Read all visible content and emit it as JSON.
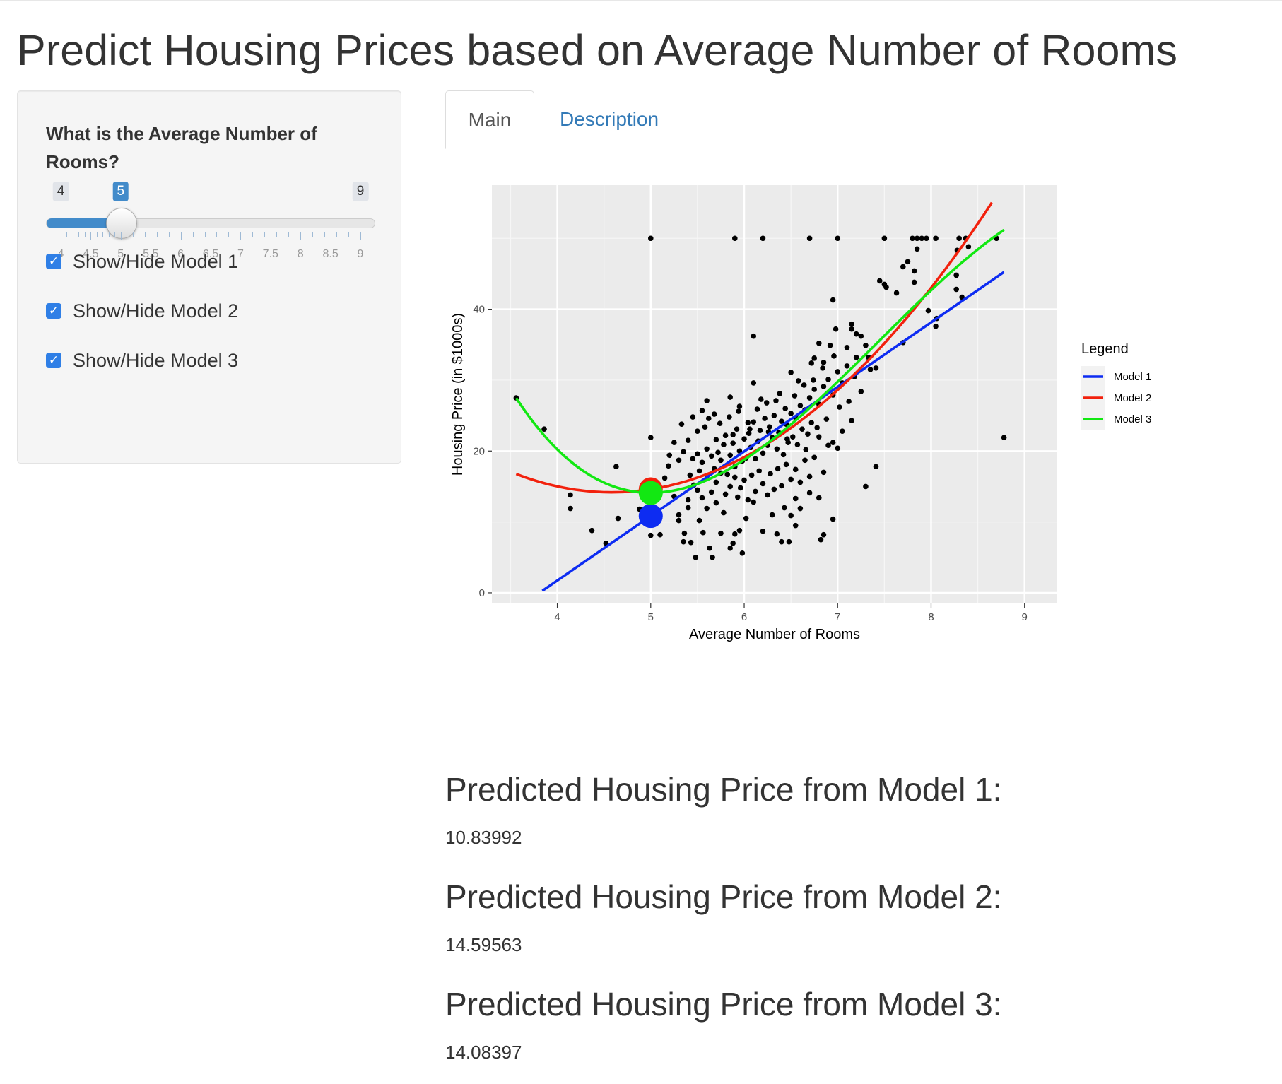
{
  "page": {
    "title": "Predict Housing Prices based on Average Number of Rooms"
  },
  "sidebar": {
    "input_label": "What is the Average Number of Rooms?",
    "slider": {
      "min": 4,
      "max": 9,
      "value": 5,
      "min_label": "4",
      "max_label": "9",
      "value_label": "5",
      "tick_labels": [
        "4",
        "4.5",
        "5",
        "5.5",
        "6",
        "6.5",
        "7",
        "7.5",
        "8",
        "8.5",
        "9"
      ],
      "accent_color": "#428bca"
    },
    "checkboxes": [
      {
        "label": "Show/Hide Model 1",
        "checked": true
      },
      {
        "label": "Show/Hide Model 2",
        "checked": true
      },
      {
        "label": "Show/Hide Model 3",
        "checked": true
      }
    ]
  },
  "tabs": [
    {
      "label": "Main",
      "active": true
    },
    {
      "label": "Description",
      "active": false
    }
  ],
  "chart_data": {
    "type": "scatter",
    "xlabel": "Average Number of Rooms",
    "ylabel": "Housing Price (in $1000s)",
    "xlim": [
      3.3,
      9.35
    ],
    "ylim": [
      -1.5,
      57.5
    ],
    "x_ticks": [
      4,
      5,
      6,
      7,
      8,
      9
    ],
    "y_ticks": [
      0,
      20,
      40
    ],
    "grid": true,
    "legend": {
      "title": "Legend",
      "position": "right",
      "entries": [
        {
          "label": "Model 1",
          "color": "#0d2cf2"
        },
        {
          "label": "Model 2",
          "color": "#f2210d"
        },
        {
          "label": "Model 3",
          "color": "#12e812"
        }
      ]
    },
    "series": [
      {
        "name": "Model 1",
        "kind": "linear",
        "x_range": [
          3.84,
          8.78
        ],
        "coef": [
          -34.67,
          9.102
        ],
        "color": "#0d2cf2"
      },
      {
        "name": "Model 2",
        "kind": "quadratic",
        "x_range": [
          3.56,
          8.65
        ],
        "coef": [
          66.06,
          -22.64,
          2.47
        ],
        "color": "#f2210d"
      },
      {
        "name": "Model 3",
        "kind": "cubic",
        "x_range": [
          3.56,
          8.78
        ],
        "coef": [
          241.31,
          -109.39,
          16.49,
          -0.74
        ],
        "color": "#12e812"
      }
    ],
    "predictions": [
      {
        "x": 5,
        "y": 10.83992,
        "color": "#0d2cf2"
      },
      {
        "x": 5,
        "y": 14.59563,
        "color": "#f2210d"
      },
      {
        "x": 5,
        "y": 14.08397,
        "color": "#12e812"
      }
    ],
    "points": [
      [
        5.0,
        50.0
      ],
      [
        5.9,
        50.0
      ],
      [
        6.2,
        50.0
      ],
      [
        6.7,
        50.0
      ],
      [
        7.0,
        50.0
      ],
      [
        7.5,
        50.0
      ],
      [
        7.8,
        50.0
      ],
      [
        7.85,
        50.0
      ],
      [
        7.9,
        50.0
      ],
      [
        7.95,
        50.0
      ],
      [
        8.05,
        50.0
      ],
      [
        8.3,
        50.0
      ],
      [
        8.37,
        50.0
      ],
      [
        8.7,
        50.0
      ],
      [
        7.85,
        48.5
      ],
      [
        8.28,
        48.3
      ],
      [
        8.4,
        48.8
      ],
      [
        7.7,
        46.0
      ],
      [
        7.75,
        46.7
      ],
      [
        7.82,
        45.4
      ],
      [
        7.82,
        43.8
      ],
      [
        7.45,
        44.0
      ],
      [
        7.5,
        43.5
      ],
      [
        7.52,
        43.1
      ],
      [
        7.63,
        42.3
      ],
      [
        8.27,
        44.8
      ],
      [
        8.27,
        42.8
      ],
      [
        8.33,
        41.7
      ],
      [
        6.95,
        41.3
      ],
      [
        7.97,
        39.8
      ],
      [
        8.05,
        37.6
      ],
      [
        8.06,
        38.7
      ],
      [
        7.7,
        35.3
      ],
      [
        7.15,
        37.9
      ],
      [
        7.15,
        37.2
      ],
      [
        6.98,
        37.2
      ],
      [
        7.2,
        36.5
      ],
      [
        7.25,
        36.2
      ],
      [
        7.3,
        34.9
      ],
      [
        7.1,
        34.6
      ],
      [
        6.92,
        34.9
      ],
      [
        6.96,
        33.4
      ],
      [
        7.2,
        33.2
      ],
      [
        6.85,
        32.5
      ],
      [
        6.75,
        33.1
      ],
      [
        7.33,
        33.2
      ],
      [
        7.41,
        31.7
      ],
      [
        7.35,
        31.5
      ],
      [
        6.1,
        36.2
      ],
      [
        6.8,
        35.2
      ],
      [
        3.56,
        27.5
      ],
      [
        3.86,
        23.1
      ],
      [
        4.14,
        13.8
      ],
      [
        4.14,
        11.9
      ],
      [
        4.37,
        8.8
      ],
      [
        4.52,
        7.0
      ],
      [
        4.63,
        17.8
      ],
      [
        4.65,
        10.5
      ],
      [
        4.88,
        11.8
      ],
      [
        5.0,
        12.5
      ],
      [
        5.0,
        8.1
      ],
      [
        5.0,
        15.9
      ],
      [
        5.0,
        21.9
      ],
      [
        5.1,
        8.2
      ],
      [
        5.15,
        16.2
      ],
      [
        5.19,
        17.9
      ],
      [
        5.25,
        13.6
      ],
      [
        5.3,
        11.0
      ],
      [
        5.3,
        10.2
      ],
      [
        5.35,
        7.2
      ],
      [
        5.36,
        8.4
      ],
      [
        5.4,
        13.1
      ],
      [
        5.4,
        12.0
      ],
      [
        5.43,
        7.1
      ],
      [
        5.46,
        15.2
      ],
      [
        5.48,
        5.0
      ],
      [
        5.5,
        14.5
      ],
      [
        5.52,
        10.2
      ],
      [
        5.55,
        13.4
      ],
      [
        5.56,
        8.5
      ],
      [
        5.6,
        11.9
      ],
      [
        5.63,
        6.3
      ],
      [
        5.66,
        5.0
      ],
      [
        5.7,
        12.7
      ],
      [
        5.75,
        8.4
      ],
      [
        5.78,
        11.3
      ],
      [
        5.85,
        6.3
      ],
      [
        5.88,
        7.0
      ],
      [
        5.9,
        8.3
      ],
      [
        5.95,
        8.8
      ],
      [
        5.98,
        5.6
      ],
      [
        6.02,
        10.5
      ],
      [
        6.1,
        12.8
      ],
      [
        6.2,
        8.7
      ],
      [
        6.3,
        11.0
      ],
      [
        6.35,
        8.3
      ],
      [
        6.4,
        7.2
      ],
      [
        6.43,
        12.0
      ],
      [
        6.48,
        7.2
      ],
      [
        6.5,
        10.9
      ],
      [
        6.55,
        9.5
      ],
      [
        6.6,
        11.9
      ],
      [
        6.55,
        13.3
      ],
      [
        6.7,
        14.1
      ],
      [
        6.8,
        13.4
      ],
      [
        6.82,
        7.5
      ],
      [
        6.85,
        8.2
      ],
      [
        6.95,
        10.4
      ],
      [
        7.3,
        15.0
      ],
      [
        7.41,
        17.8
      ],
      [
        8.78,
        21.9
      ],
      [
        5.45,
        18.9
      ],
      [
        5.5,
        19.6
      ],
      [
        5.55,
        18.4
      ],
      [
        5.6,
        20.3
      ],
      [
        5.65,
        19.3
      ],
      [
        5.68,
        17.5
      ],
      [
        5.7,
        21.6
      ],
      [
        5.72,
        19.8
      ],
      [
        5.75,
        18.7
      ],
      [
        5.78,
        20.9
      ],
      [
        5.8,
        22.2
      ],
      [
        5.82,
        16.7
      ],
      [
        5.85,
        19.4
      ],
      [
        5.88,
        21.1
      ],
      [
        5.9,
        17.8
      ],
      [
        5.92,
        23.1
      ],
      [
        5.95,
        20.0
      ],
      [
        5.98,
        18.6
      ],
      [
        6.0,
        21.7
      ],
      [
        6.02,
        19.0
      ],
      [
        6.05,
        22.5
      ],
      [
        6.07,
        20.5
      ],
      [
        6.1,
        24.1
      ],
      [
        6.12,
        18.9
      ],
      [
        6.15,
        21.4
      ],
      [
        6.17,
        22.9
      ],
      [
        6.2,
        19.7
      ],
      [
        6.22,
        24.6
      ],
      [
        6.25,
        20.8
      ],
      [
        6.27,
        23.4
      ],
      [
        6.3,
        21.9
      ],
      [
        6.32,
        25.0
      ],
      [
        6.35,
        20.3
      ],
      [
        6.37,
        22.6
      ],
      [
        6.4,
        24.2
      ],
      [
        6.42,
        19.5
      ],
      [
        6.45,
        23.8
      ],
      [
        6.47,
        21.2
      ],
      [
        6.5,
        25.3
      ],
      [
        6.52,
        22.0
      ],
      [
        6.55,
        24.7
      ],
      [
        6.57,
        20.9
      ],
      [
        6.6,
        26.4
      ],
      [
        6.62,
        23.1
      ],
      [
        6.65,
        25.8
      ],
      [
        6.68,
        22.4
      ],
      [
        6.7,
        27.5
      ],
      [
        6.72,
        24.0
      ],
      [
        6.75,
        28.7
      ],
      [
        6.78,
        23.3
      ],
      [
        6.8,
        26.6
      ],
      [
        6.85,
        29.1
      ],
      [
        6.88,
        24.5
      ],
      [
        6.9,
        30.1
      ],
      [
        6.95,
        27.9
      ],
      [
        7.0,
        31.2
      ],
      [
        7.02,
        26.2
      ],
      [
        7.05,
        29.6
      ],
      [
        7.1,
        32.0
      ],
      [
        7.12,
        27.0
      ],
      [
        7.18,
        30.5
      ],
      [
        7.25,
        28.4
      ],
      [
        5.6,
        16.1
      ],
      [
        5.65,
        14.2
      ],
      [
        5.7,
        15.6
      ],
      [
        5.75,
        16.9
      ],
      [
        5.8,
        13.9
      ],
      [
        5.85,
        15.0
      ],
      [
        5.9,
        16.3
      ],
      [
        5.93,
        13.5
      ],
      [
        5.96,
        14.8
      ],
      [
        6.0,
        15.9
      ],
      [
        6.04,
        13.1
      ],
      [
        6.08,
        16.6
      ],
      [
        6.12,
        14.3
      ],
      [
        6.16,
        17.2
      ],
      [
        6.2,
        15.4
      ],
      [
        6.25,
        13.8
      ],
      [
        6.28,
        16.8
      ],
      [
        6.32,
        14.6
      ],
      [
        6.36,
        17.5
      ],
      [
        6.4,
        15.1
      ],
      [
        6.45,
        18.1
      ],
      [
        6.5,
        16.0
      ],
      [
        6.55,
        17.4
      ],
      [
        6.6,
        15.6
      ],
      [
        6.65,
        18.7
      ],
      [
        6.7,
        16.4
      ],
      [
        6.75,
        19.1
      ],
      [
        6.85,
        17.0
      ],
      [
        6.95,
        21.2
      ],
      [
        7.05,
        22.8
      ],
      [
        7.15,
        24.3
      ],
      [
        7.0,
        20.4
      ],
      [
        6.9,
        20.8
      ],
      [
        6.8,
        22.0
      ],
      [
        5.5,
        22.8
      ],
      [
        5.4,
        21.5
      ],
      [
        5.35,
        19.9
      ],
      [
        5.3,
        18.7
      ],
      [
        5.42,
        16.6
      ],
      [
        5.52,
        17.2
      ],
      [
        5.58,
        23.4
      ],
      [
        5.62,
        24.6
      ],
      [
        5.68,
        25.2
      ],
      [
        5.74,
        23.9
      ],
      [
        5.84,
        24.8
      ],
      [
        5.94,
        25.6
      ],
      [
        6.04,
        24.0
      ],
      [
        6.14,
        25.9
      ],
      [
        6.24,
        26.8
      ],
      [
        6.34,
        27.1
      ],
      [
        6.44,
        26.0
      ],
      [
        6.54,
        27.8
      ],
      [
        6.64,
        29.3
      ],
      [
        6.74,
        30.0
      ],
      [
        6.84,
        31.7
      ],
      [
        5.95,
        26.3
      ],
      [
        6.18,
        27.3
      ],
      [
        6.38,
        28.1
      ],
      [
        6.58,
        29.9
      ],
      [
        5.88,
        22.3
      ],
      [
        6.06,
        23.1
      ],
      [
        6.26,
        22.7
      ],
      [
        6.46,
        21.7
      ],
      [
        6.66,
        20.2
      ],
      [
        5.2,
        19.4
      ],
      [
        5.25,
        21.2
      ],
      [
        5.33,
        23.8
      ],
      [
        5.45,
        24.8
      ],
      [
        5.85,
        27.6
      ],
      [
        5.6,
        27.1
      ],
      [
        5.55,
        25.7
      ],
      [
        6.1,
        29.6
      ],
      [
        6.5,
        31.1
      ],
      [
        6.72,
        32.4
      ]
    ]
  },
  "predictions": [
    {
      "heading": "Predicted Housing Price from Model 1:",
      "value": "10.83992"
    },
    {
      "heading": "Predicted Housing Price from Model 2:",
      "value": "14.59563"
    },
    {
      "heading": "Predicted Housing Price from Model 3:",
      "value": "14.08397"
    }
  ]
}
